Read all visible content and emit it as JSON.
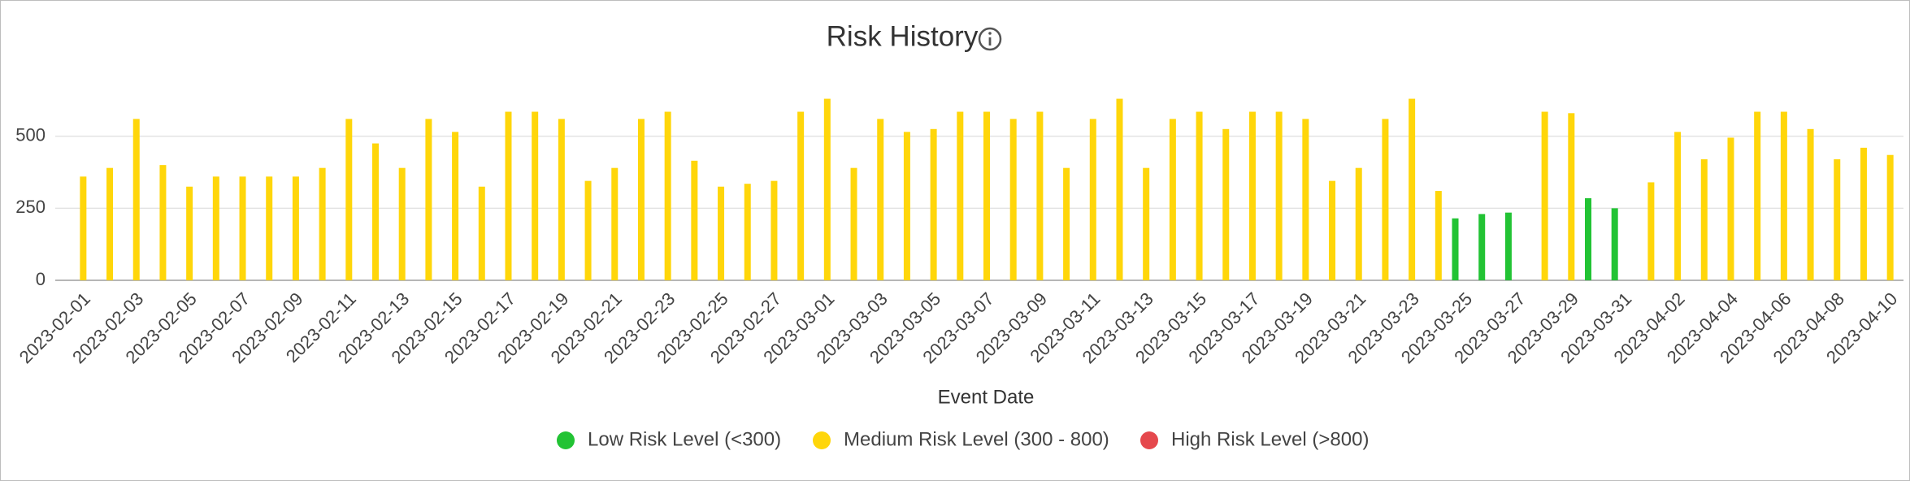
{
  "chart_data": {
    "type": "bar",
    "title": "Risk History",
    "x_label": "Event Date",
    "categories": [
      "2023-02-01",
      null,
      "2023-02-03",
      null,
      "2023-02-05",
      null,
      "2023-02-07",
      null,
      "2023-02-09",
      null,
      "2023-02-11",
      null,
      "2023-02-13",
      null,
      "2023-02-15",
      null,
      "2023-02-17",
      null,
      "2023-02-19",
      null,
      "2023-02-21",
      null,
      "2023-02-23",
      null,
      "2023-02-25",
      null,
      "2023-02-27",
      null,
      "2023-03-01",
      null,
      "2023-03-03",
      null,
      "2023-03-05",
      null,
      "2023-03-07",
      null,
      "2023-03-09",
      null,
      "2023-03-11",
      null,
      "2023-03-13",
      null,
      "2023-03-15",
      null,
      "2023-03-17",
      null,
      "2023-03-19",
      null,
      "2023-03-21",
      null,
      "2023-03-23",
      null,
      "2023-03-25",
      null,
      "2023-03-27",
      null,
      "2023-03-29",
      null,
      "2023-03-31",
      null,
      "2023-04-02",
      null,
      "2023-04-04",
      null,
      "2023-04-06",
      null,
      "2023-04-08",
      null,
      "2023-04-10"
    ],
    "series": [
      {
        "name": "Low Risk Level (<300)",
        "color": "#22c334",
        "values": [
          null,
          null,
          null,
          null,
          null,
          null,
          null,
          null,
          null,
          null,
          null,
          null,
          null,
          null,
          null,
          null,
          null,
          null,
          null,
          null,
          null,
          null,
          null,
          null,
          null,
          null,
          null,
          null,
          null,
          null,
          null,
          null,
          null,
          null,
          null,
          null,
          null,
          null,
          null,
          null,
          null,
          null,
          null,
          null,
          null,
          null,
          null,
          null,
          null,
          null,
          null,
          null,
          215,
          230,
          235,
          null,
          null,
          285,
          250,
          null,
          null,
          null,
          null,
          null,
          null,
          null,
          null,
          null,
          null
        ]
      },
      {
        "name": "Medium Risk Level (300 - 800)",
        "color": "#ffd60a",
        "values": [
          360,
          390,
          560,
          400,
          325,
          360,
          360,
          360,
          360,
          390,
          560,
          475,
          390,
          560,
          515,
          325,
          585,
          585,
          560,
          345,
          390,
          560,
          585,
          415,
          325,
          335,
          345,
          585,
          630,
          390,
          560,
          515,
          525,
          585,
          585,
          560,
          585,
          390,
          560,
          630,
          390,
          560,
          585,
          525,
          585,
          585,
          560,
          345,
          390,
          560,
          630,
          310,
          null,
          null,
          null,
          585,
          580,
          null,
          null,
          340,
          515,
          420,
          495,
          585,
          585,
          525,
          420,
          460,
          435
        ]
      },
      {
        "name": "High Risk Level (>800)",
        "color": "#e5484d",
        "values": [
          null,
          null,
          null,
          null,
          null,
          null,
          null,
          null,
          null,
          null,
          null,
          null,
          null,
          null,
          null,
          null,
          null,
          null,
          null,
          null,
          null,
          null,
          null,
          null,
          null,
          null,
          null,
          null,
          null,
          null,
          null,
          null,
          null,
          null,
          null,
          null,
          null,
          null,
          null,
          null,
          null,
          null,
          null,
          null,
          null,
          null,
          null,
          null,
          null,
          null,
          null,
          null,
          null,
          null,
          null,
          null,
          null,
          null,
          null,
          null,
          null,
          null,
          null,
          null,
          null,
          null,
          null,
          null,
          null
        ]
      }
    ],
    "ylim": [
      0,
      750
    ],
    "yticks": [
      0,
      250,
      500
    ],
    "grid": true,
    "legend": "bottom"
  }
}
